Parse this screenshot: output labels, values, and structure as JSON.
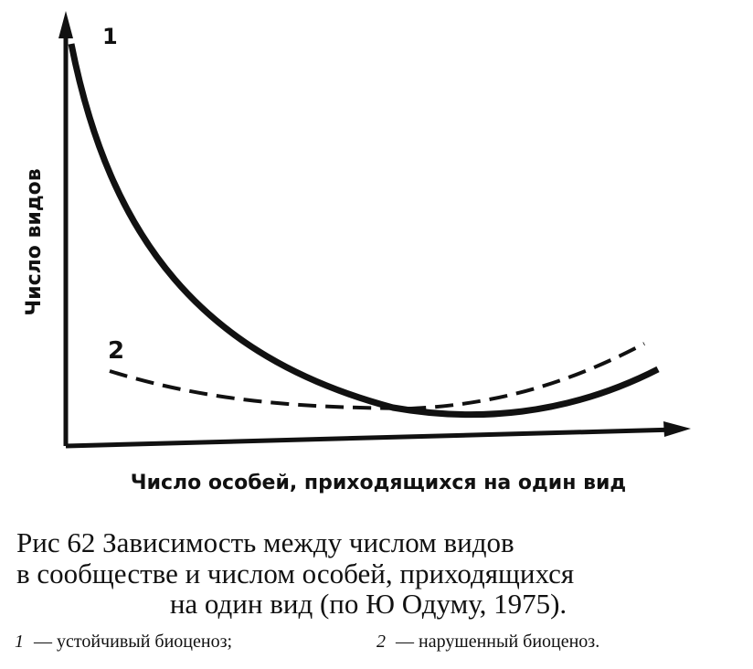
{
  "figure": {
    "curve_labels": [
      "1",
      "2"
    ],
    "y_axis_label": "Число видов",
    "x_axis_label": "Число особей, приходящихся на один вид",
    "caption_lines": [
      "Рис 62  Зависимость между числом видов",
      "в сообществе и числом особей, приходящихся",
      "на один вид (по Ю Одуму, 1975)."
    ],
    "legend": [
      {
        "number": "1",
        "text": "— устойчивый биоценоз;"
      },
      {
        "number": "2",
        "text": "— нарушенный биоценоз."
      }
    ]
  }
}
